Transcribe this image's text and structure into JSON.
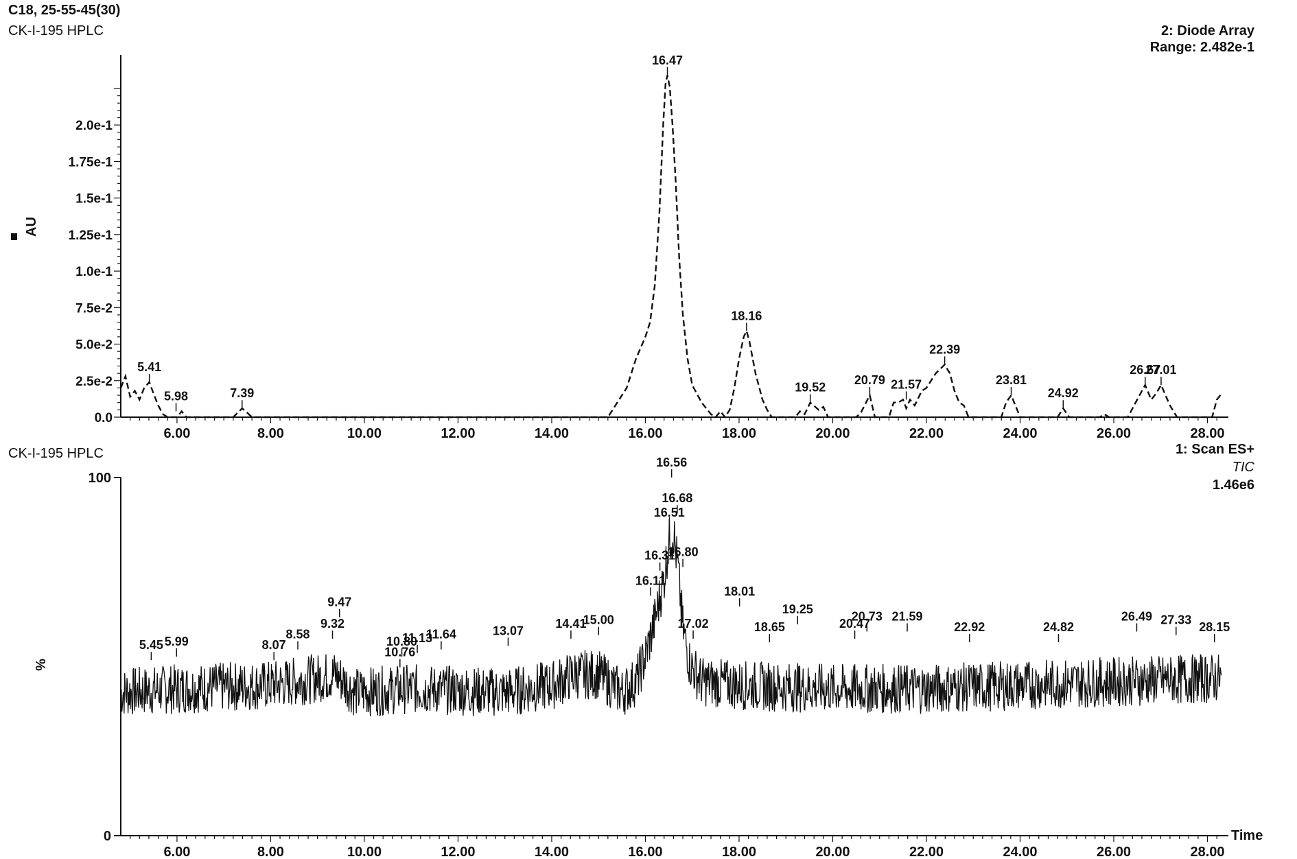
{
  "header": {
    "method": "C18, 25-55-45(30)",
    "sample": "CK-I-195 HPLC"
  },
  "chart_data": [
    {
      "type": "line",
      "panel": "top",
      "sample": "CK-I-195 HPLC",
      "detector": "2: Diode Array",
      "range": "Range: 2.482e-1",
      "ylabel": "AU",
      "xlim": [
        4.8,
        28.3
      ],
      "ylim": [
        0,
        0.248
      ],
      "x_ticks": [
        "6.00",
        "8.00",
        "10.00",
        "12.00",
        "14.00",
        "16.00",
        "18.00",
        "20.00",
        "22.00",
        "24.00",
        "26.00",
        "28.00"
      ],
      "y_ticks": [
        "0.0",
        "2.5e-2",
        "5.0e-2",
        "7.5e-2",
        "1.0e-1",
        "1.25e-1",
        "1.5e-1",
        "1.75e-1",
        "2.0e-1"
      ],
      "line_style": "dashed",
      "points": [
        [
          4.8,
          0.02
        ],
        [
          4.9,
          0.028
        ],
        [
          5.0,
          0.014
        ],
        [
          5.1,
          0.018
        ],
        [
          5.2,
          0.012
        ],
        [
          5.3,
          0.02
        ],
        [
          5.41,
          0.024
        ],
        [
          5.5,
          0.016
        ],
        [
          5.6,
          0.008
        ],
        [
          5.7,
          0.002
        ],
        [
          5.8,
          0.0
        ],
        [
          6.0,
          0.0
        ],
        [
          6.1,
          0.004
        ],
        [
          6.2,
          0.0
        ],
        [
          7.2,
          0.0
        ],
        [
          7.39,
          0.006
        ],
        [
          7.5,
          0.003
        ],
        [
          7.6,
          0.0
        ],
        [
          15.2,
          0.0
        ],
        [
          15.4,
          0.01
        ],
        [
          15.6,
          0.02
        ],
        [
          15.8,
          0.04
        ],
        [
          16.0,
          0.055
        ],
        [
          16.1,
          0.065
        ],
        [
          16.2,
          0.09
        ],
        [
          16.3,
          0.14
        ],
        [
          16.38,
          0.2
        ],
        [
          16.43,
          0.228
        ],
        [
          16.47,
          0.234
        ],
        [
          16.52,
          0.226
        ],
        [
          16.58,
          0.2
        ],
        [
          16.65,
          0.16
        ],
        [
          16.72,
          0.11
        ],
        [
          16.8,
          0.07
        ],
        [
          16.9,
          0.04
        ],
        [
          17.0,
          0.022
        ],
        [
          17.2,
          0.01
        ],
        [
          17.4,
          0.002
        ],
        [
          17.5,
          0.0
        ],
        [
          17.6,
          0.004
        ],
        [
          17.7,
          0.0
        ],
        [
          17.8,
          0.005
        ],
        [
          17.9,
          0.02
        ],
        [
          18.0,
          0.04
        ],
        [
          18.1,
          0.055
        ],
        [
          18.16,
          0.059
        ],
        [
          18.22,
          0.052
        ],
        [
          18.35,
          0.03
        ],
        [
          18.5,
          0.012
        ],
        [
          18.6,
          0.005
        ],
        [
          18.7,
          0.0
        ],
        [
          19.2,
          0.0
        ],
        [
          19.3,
          0.004
        ],
        [
          19.4,
          0.002
        ],
        [
          19.52,
          0.01
        ],
        [
          19.7,
          0.005
        ],
        [
          19.8,
          0.007
        ],
        [
          19.9,
          0.0
        ],
        [
          20.5,
          0.0
        ],
        [
          20.6,
          0.003
        ],
        [
          20.79,
          0.015
        ],
        [
          20.9,
          0.0
        ],
        [
          21.2,
          0.0
        ],
        [
          21.3,
          0.01
        ],
        [
          21.4,
          0.01
        ],
        [
          21.5,
          0.012
        ],
        [
          21.57,
          0.006
        ],
        [
          21.65,
          0.012
        ],
        [
          21.75,
          0.008
        ],
        [
          21.9,
          0.018
        ],
        [
          22.0,
          0.02
        ],
        [
          22.2,
          0.03
        ],
        [
          22.39,
          0.036
        ],
        [
          22.5,
          0.03
        ],
        [
          22.6,
          0.018
        ],
        [
          22.7,
          0.01
        ],
        [
          22.8,
          0.008
        ],
        [
          22.9,
          0.0
        ],
        [
          23.6,
          0.0
        ],
        [
          23.7,
          0.01
        ],
        [
          23.81,
          0.015
        ],
        [
          23.9,
          0.008
        ],
        [
          24.0,
          0.0
        ],
        [
          24.8,
          0.0
        ],
        [
          24.92,
          0.006
        ],
        [
          25.05,
          0.0
        ],
        [
          25.7,
          0.0
        ],
        [
          25.8,
          0.002
        ],
        [
          25.9,
          0.0
        ],
        [
          26.3,
          0.0
        ],
        [
          26.5,
          0.012
        ],
        [
          26.67,
          0.022
        ],
        [
          26.8,
          0.012
        ],
        [
          26.9,
          0.016
        ],
        [
          27.01,
          0.022
        ],
        [
          27.2,
          0.008
        ],
        [
          27.35,
          0.0
        ],
        [
          28.1,
          0.0
        ],
        [
          28.2,
          0.012
        ],
        [
          28.3,
          0.016
        ]
      ],
      "peak_labels": [
        [
          "5.41",
          5.41,
          0.024
        ],
        [
          "5.98",
          5.98,
          0.004
        ],
        [
          "7.39",
          7.39,
          0.006
        ],
        [
          "16.47",
          16.47,
          0.234
        ],
        [
          "18.16",
          18.16,
          0.059
        ],
        [
          "19.52",
          19.52,
          0.01
        ],
        [
          "20.79",
          20.79,
          0.015
        ],
        [
          "21.57",
          21.57,
          0.012
        ],
        [
          "22.39",
          22.39,
          0.036
        ],
        [
          "23.81",
          23.81,
          0.015
        ],
        [
          "24.92",
          24.92,
          0.006
        ],
        [
          "26.67",
          26.67,
          0.022
        ],
        [
          "27.01",
          27.01,
          0.022
        ]
      ]
    },
    {
      "type": "line",
      "panel": "bottom",
      "sample": "CK-I-195 HPLC",
      "detector": "1: Scan ES+",
      "trace": "TIC",
      "range": "1.46e6",
      "ylabel": "%",
      "xlabel": "Time",
      "xlim": [
        4.8,
        28.3
      ],
      "ylim": [
        0,
        100
      ],
      "x_ticks": [
        "6.00",
        "8.00",
        "10.00",
        "12.00",
        "14.00",
        "16.00",
        "18.00",
        "20.00",
        "22.00",
        "24.00",
        "26.00",
        "28.00"
      ],
      "y_ticks": [
        "0",
        "100"
      ],
      "baseline": [
        [
          4.8,
          40
        ],
        [
          6.0,
          41
        ],
        [
          8.0,
          42
        ],
        [
          9.0,
          44
        ],
        [
          9.4,
          45
        ],
        [
          9.8,
          40
        ],
        [
          11.0,
          41
        ],
        [
          13.0,
          40
        ],
        [
          14.0,
          42
        ],
        [
          14.5,
          45
        ],
        [
          15.0,
          45
        ],
        [
          15.5,
          40
        ],
        [
          15.8,
          43
        ],
        [
          16.0,
          50
        ],
        [
          16.2,
          60
        ],
        [
          16.4,
          72
        ],
        [
          16.5,
          82
        ],
        [
          16.6,
          85
        ],
        [
          16.7,
          74
        ],
        [
          16.8,
          58
        ],
        [
          16.95,
          48
        ],
        [
          17.2,
          43
        ],
        [
          18.0,
          42
        ],
        [
          20.0,
          41
        ],
        [
          22.0,
          41
        ],
        [
          24.0,
          42
        ],
        [
          26.0,
          43
        ],
        [
          28.3,
          44
        ]
      ],
      "peak_labels": [
        [
          "5.45",
          5.45,
          49
        ],
        [
          "5.99",
          5.99,
          50
        ],
        [
          "8.07",
          8.07,
          49
        ],
        [
          "8.58",
          8.58,
          52
        ],
        [
          "9.32",
          9.32,
          55
        ],
        [
          "9.47",
          9.47,
          61
        ],
        [
          "10.80",
          10.8,
          50
        ],
        [
          "10.76",
          10.76,
          47
        ],
        [
          "11.13",
          11.13,
          51
        ],
        [
          "11.64",
          11.64,
          52
        ],
        [
          "13.07",
          13.07,
          53
        ],
        [
          "14.41",
          14.41,
          55
        ],
        [
          "15.00",
          15.0,
          56
        ],
        [
          "16.11",
          16.11,
          67
        ],
        [
          "16.31",
          16.31,
          74
        ],
        [
          "16.51",
          16.51,
          86
        ],
        [
          "16.56",
          16.56,
          100
        ],
        [
          "16.68",
          16.68,
          90
        ],
        [
          "16.80",
          16.8,
          75
        ],
        [
          "17.02",
          17.02,
          55
        ],
        [
          "18.01",
          18.01,
          64
        ],
        [
          "18.65",
          18.65,
          54
        ],
        [
          "19.25",
          19.25,
          59
        ],
        [
          "20.47",
          20.47,
          55
        ],
        [
          "20.73",
          20.73,
          57
        ],
        [
          "21.59",
          21.59,
          57
        ],
        [
          "22.92",
          22.92,
          54
        ],
        [
          "24.82",
          24.82,
          54
        ],
        [
          "26.49",
          26.49,
          57
        ],
        [
          "27.33",
          27.33,
          56
        ],
        [
          "28.15",
          28.15,
          54
        ]
      ]
    }
  ]
}
